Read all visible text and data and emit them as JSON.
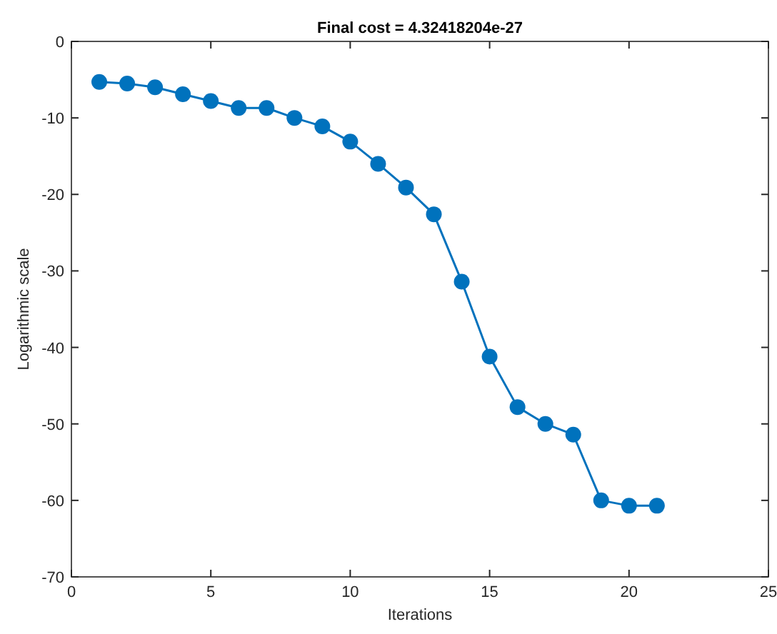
{
  "chart_data": {
    "type": "line",
    "title": "Final cost = 4.32418204e-27",
    "xlabel": "Iterations",
    "ylabel": "Logarithmic scale",
    "x": [
      1,
      2,
      3,
      4,
      5,
      6,
      7,
      8,
      9,
      10,
      11,
      12,
      13,
      14,
      15,
      16,
      17,
      18,
      19,
      20,
      21
    ],
    "series": [
      {
        "color": "#0072bd",
        "values": [
          -5.3,
          -5.5,
          -6.0,
          -6.9,
          -7.8,
          -8.7,
          -8.7,
          -10.0,
          -11.1,
          -13.1,
          -16.0,
          -19.1,
          -22.6,
          -31.4,
          -41.2,
          -47.8,
          -50.0,
          -51.4,
          -60.0,
          -60.7,
          -60.7
        ]
      }
    ],
    "xlim": [
      0,
      25
    ],
    "xticks": [
      0,
      5,
      10,
      15,
      20,
      25
    ],
    "ylim": [
      -70,
      0
    ],
    "yticks": [
      -70,
      -60,
      -50,
      -40,
      -30,
      -20,
      -10,
      0
    ],
    "marker": "circle",
    "line_style": "solid"
  }
}
